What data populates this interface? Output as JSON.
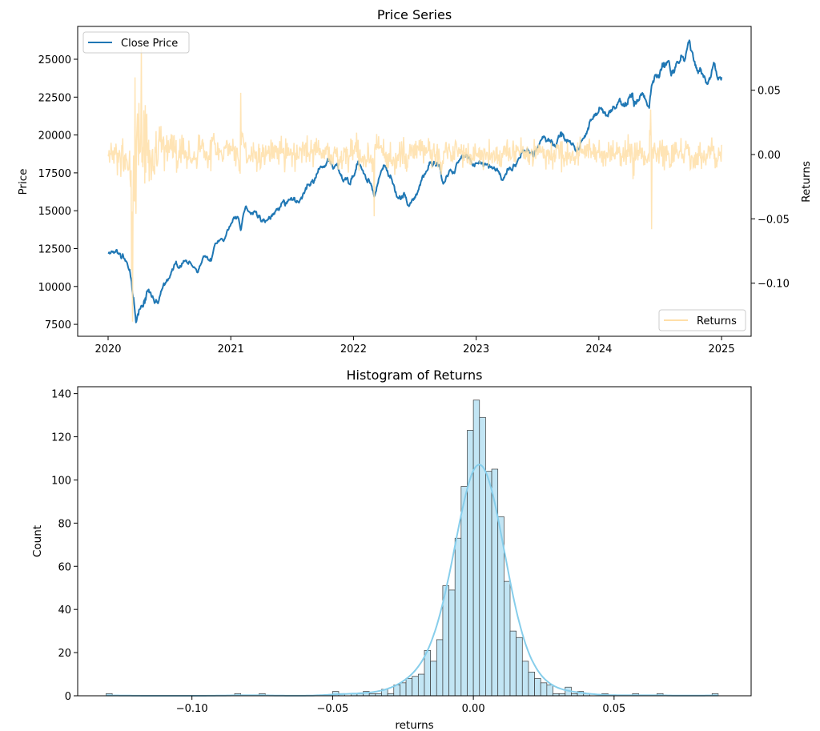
{
  "chart_data": [
    {
      "type": "line",
      "title": "Price Series",
      "xlabel": "",
      "ylabel": "Price",
      "y2label": "Returns",
      "xlim": [
        2019.752,
        2025.241
      ],
      "ylim": [
        6712,
        27167
      ],
      "y2lim": [
        -0.1413,
        0.0996
      ],
      "x_ticks": [
        2020,
        2021,
        2022,
        2023,
        2024,
        2025
      ],
      "x_tick_labels": [
        "2020",
        "2021",
        "2022",
        "2023",
        "2024",
        "2025"
      ],
      "y_ticks": [
        7500,
        10000,
        12500,
        15000,
        17500,
        20000,
        22500,
        25000
      ],
      "y_tick_labels": [
        "7500",
        "10000",
        "12500",
        "15000",
        "17500",
        "20000",
        "22500",
        "25000"
      ],
      "y2_ticks": [
        -0.1,
        -0.05,
        0.0,
        0.05
      ],
      "y2_tick_labels": [
        "−0.10",
        "−0.05",
        "0.00",
        "0.05"
      ],
      "legend": [
        {
          "label": "Close Price",
          "placement": "upper-left"
        },
        {
          "label": "Returns",
          "placement": "lower-right"
        }
      ],
      "colors": {
        "price": "#1f77b4",
        "returns": "#ffdfa8"
      },
      "series": [
        {
          "name": "Close Price",
          "x": [
            2020.0,
            2020.04,
            2020.12,
            2020.15,
            2020.19,
            2020.21,
            2020.23,
            2020.26,
            2020.3,
            2020.33,
            2020.38,
            2020.45,
            2020.51,
            2020.58,
            2020.67,
            2020.73,
            2020.79,
            2020.84,
            2020.87,
            2020.97,
            2021.02,
            2021.06,
            2021.08,
            2021.12,
            2021.19,
            2021.3,
            2021.39,
            2021.43,
            2021.57,
            2021.61,
            2021.67,
            2021.71,
            2021.76,
            2021.79,
            2021.84,
            2021.87,
            2021.92,
            2021.97,
            2022.04,
            2022.08,
            2022.13,
            2022.17,
            2022.21,
            2022.25,
            2022.31,
            2022.36,
            2022.45,
            2022.49,
            2022.58,
            2022.64,
            2022.7,
            2022.74,
            2022.84,
            2022.92,
            2022.97,
            2023.12,
            2023.21,
            2023.32,
            2023.47,
            2023.55,
            2023.65,
            2023.7,
            2023.75,
            2023.82,
            2023.9,
            2023.93,
            2024.02,
            2024.06,
            2024.17,
            2024.21,
            2024.27,
            2024.3,
            2024.36,
            2024.41,
            2024.43,
            2024.5,
            2024.57,
            2024.59,
            2024.67,
            2024.7,
            2024.73,
            2024.77,
            2024.83,
            2024.88,
            2024.94,
            2024.97,
            2025.0
          ],
          "y": [
            12225,
            12330,
            12150,
            11680,
            10430,
            9040,
            7660,
            8510,
            9120,
            9830,
            8930,
            10100,
            10780,
            11220,
            11570,
            10890,
            12000,
            11680,
            12810,
            13690,
            14480,
            14560,
            13690,
            15270,
            15000,
            14390,
            15000,
            15710,
            15800,
            16510,
            16860,
            17560,
            17820,
            18450,
            17820,
            18100,
            17030,
            16680,
            18270,
            17480,
            16940,
            15890,
            17200,
            18010,
            17110,
            15890,
            15270,
            15800,
            17390,
            17920,
            18010,
            16860,
            18100,
            18750,
            18010,
            17920,
            16980,
            17920,
            18750,
            19940,
            19330,
            20120,
            19590,
            18980,
            20120,
            21000,
            21710,
            21260,
            22410,
            21890,
            22760,
            22050,
            22760,
            21920,
            23290,
            24260,
            24960,
            24010,
            25320,
            24960,
            26200,
            24960,
            24350,
            23380,
            24700,
            23640,
            23640
          ]
        },
        {
          "name": "Returns",
          "notable_points": {
            "x": [
              2020.19,
              2020.2,
              2020.22,
              2020.27,
              2021.08,
              2022.17,
              2024.42,
              2024.43
            ],
            "y": [
              -0.09,
              -0.13,
              0.06,
              0.085,
              0.048,
              -0.048,
              0.035,
              -0.058
            ]
          }
        }
      ]
    },
    {
      "type": "bar",
      "title": "Histogram of Returns",
      "xlabel": "returns",
      "ylabel": "Count",
      "xlim": [
        -0.1406,
        0.0987
      ],
      "ylim": [
        0,
        143.2
      ],
      "x_ticks": [
        -0.1,
        -0.05,
        0.0,
        0.05
      ],
      "x_tick_labels": [
        "−0.10",
        "−0.05",
        "0.00",
        "0.05"
      ],
      "y_ticks": [
        0,
        20,
        40,
        60,
        80,
        100,
        120,
        140
      ],
      "y_tick_labels": [
        "0",
        "20",
        "40",
        "60",
        "80",
        "100",
        "120",
        "140"
      ],
      "bin_start": -0.1305,
      "bin_width": 0.002175,
      "counts": [
        1,
        0,
        0,
        0,
        0,
        0,
        0,
        0,
        0,
        0,
        0,
        0,
        0,
        0,
        0,
        0,
        0,
        0,
        0,
        0,
        0,
        1,
        0,
        0,
        0,
        1,
        0,
        0,
        0,
        0,
        0,
        0,
        0,
        0,
        0,
        0,
        0,
        2,
        1,
        0,
        1,
        1,
        2,
        1,
        1,
        3,
        1,
        5,
        6,
        8,
        9,
        10,
        21,
        16,
        26,
        51,
        49,
        73,
        97,
        123,
        137,
        129,
        104,
        105,
        83,
        53,
        30,
        27,
        16,
        11,
        8,
        6,
        5,
        1,
        1,
        4,
        1,
        2,
        1,
        0,
        0,
        1,
        0,
        0,
        0,
        0,
        1,
        0,
        0,
        0,
        1,
        0,
        0,
        0,
        0,
        0,
        0,
        0,
        0,
        1
      ],
      "kde": true,
      "colors": {
        "bar": "#c2e5f4",
        "edge": "#3a3a3a",
        "kde": "#87ceeb"
      }
    }
  ]
}
